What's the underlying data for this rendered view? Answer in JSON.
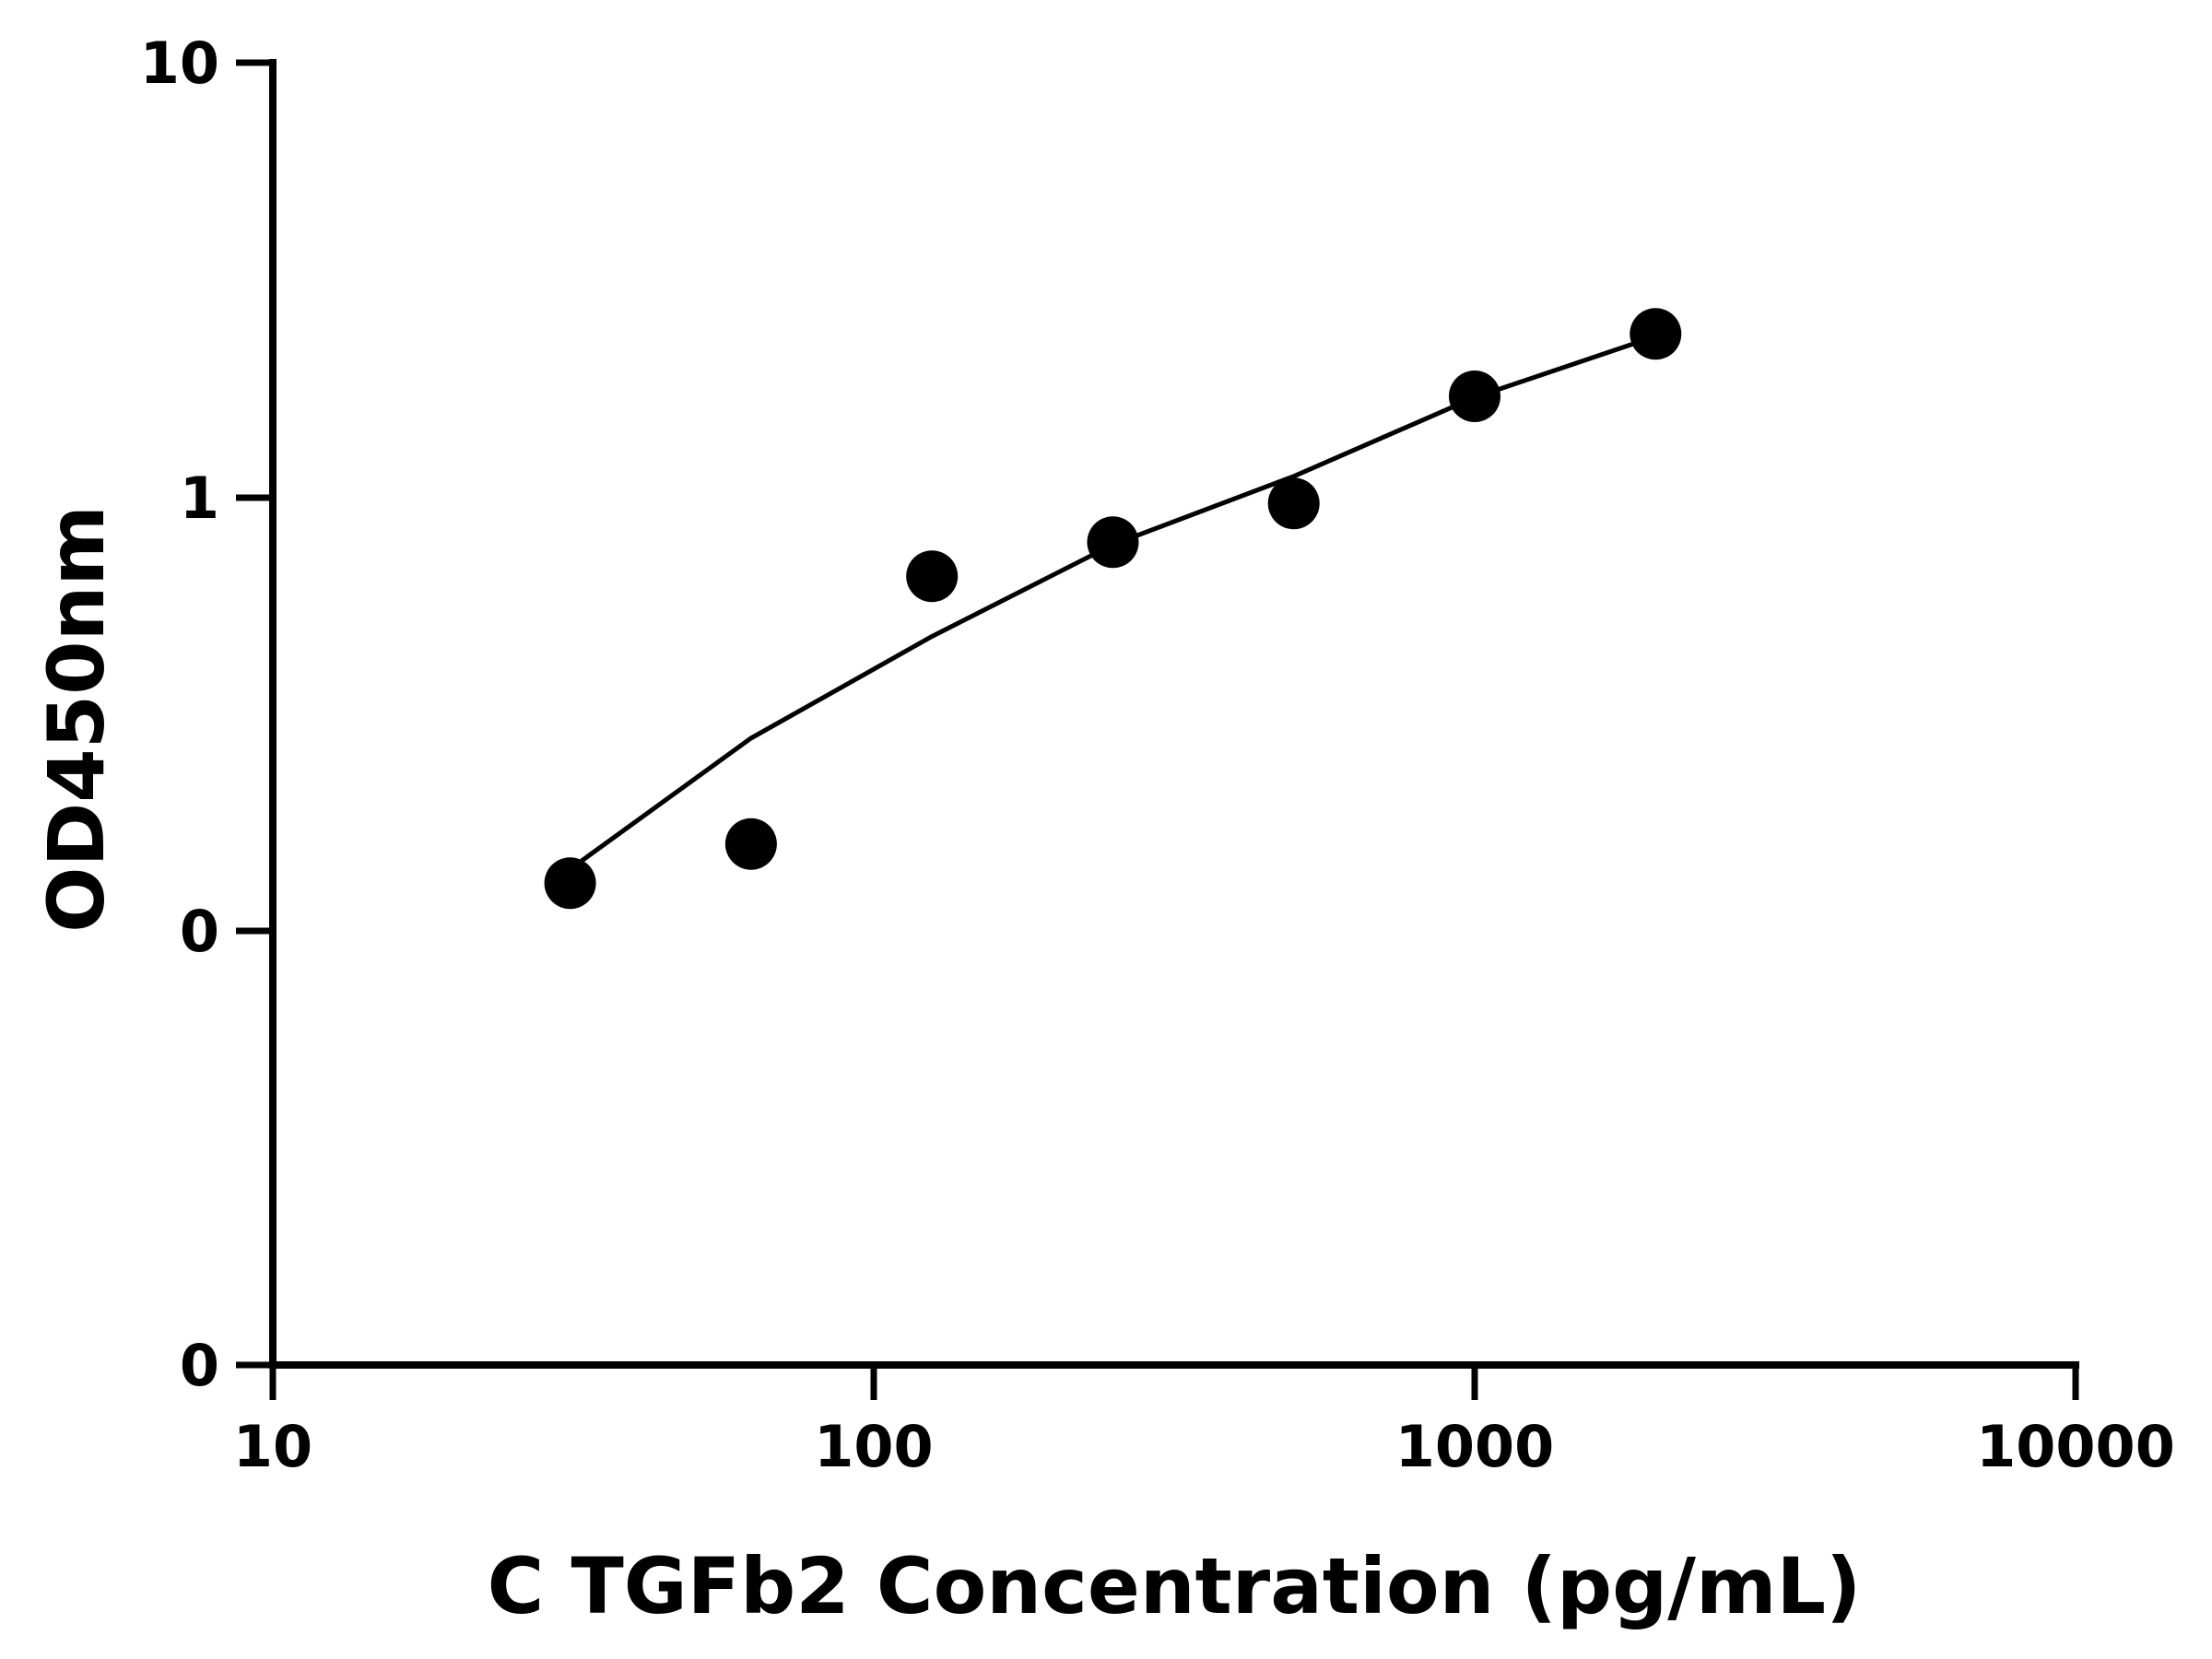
{
  "chart_data": {
    "type": "scatter",
    "title": "",
    "xlabel": "C TGFb2 Concentration (pg/mL)",
    "ylabel": "OD450nm",
    "x_scale": "log",
    "xlim": [
      10,
      10000
    ],
    "x_ticks": [
      10,
      100,
      1000,
      10000
    ],
    "x_tick_labels": [
      "10",
      "100",
      "1000",
      "10000"
    ],
    "y_tick_labels": [
      "0",
      "0",
      "1",
      "10"
    ],
    "grid": false,
    "legend": "none",
    "colors": {
      "points": "#000000",
      "curve": "#000000",
      "axes": "#000000"
    },
    "series": [
      {
        "kind": "points",
        "x": [
          31.25,
          62.5,
          125,
          250,
          500,
          1000,
          2000
        ],
        "y": [
          0.13,
          0.16,
          0.66,
          0.79,
          0.97,
          1.71,
          2.38
        ]
      },
      {
        "kind": "fit-curve",
        "x": [
          31.25,
          62.5,
          125,
          250,
          500,
          1000,
          2000
        ],
        "y": [
          0.14,
          0.28,
          0.48,
          0.78,
          1.12,
          1.7,
          2.35
        ]
      }
    ]
  }
}
